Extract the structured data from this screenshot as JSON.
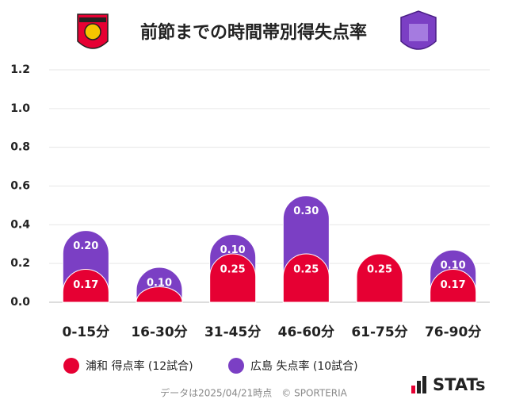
{
  "chart_data": {
    "type": "stacked-bar",
    "title": "前節までの時間帯別得失点率",
    "categories": [
      "0-15分",
      "16-30分",
      "31-45分",
      "46-60分",
      "61-75分",
      "76-90分"
    ],
    "series": [
      {
        "name": "浦和 得点率 (12試合)",
        "color": "#e60033",
        "values": [
          0.17,
          0.08,
          0.25,
          0.25,
          0.25,
          0.17
        ],
        "value_labels": [
          "0.17",
          null,
          "0.25",
          "0.25",
          "0.25",
          "0.17"
        ]
      },
      {
        "name": "広島 失点率 (10試合)",
        "color": "#7b3fc4",
        "values": [
          0.2,
          0.1,
          0.1,
          0.3,
          0,
          0.1
        ],
        "value_labels": [
          "0.20",
          "0.10",
          "0.10",
          "0.30",
          null,
          "0.10"
        ]
      }
    ],
    "ylim": [
      0,
      1.2
    ],
    "yticks": [
      {
        "value": 0,
        "label": "0.0"
      },
      0.2,
      0.4,
      0.6,
      0.8,
      {
        "value": 1,
        "label": "1.0"
      },
      1.2
    ],
    "grid": true,
    "footer": "データは2025/04/21時点　© SPORTERIA",
    "brand": "STATs"
  }
}
